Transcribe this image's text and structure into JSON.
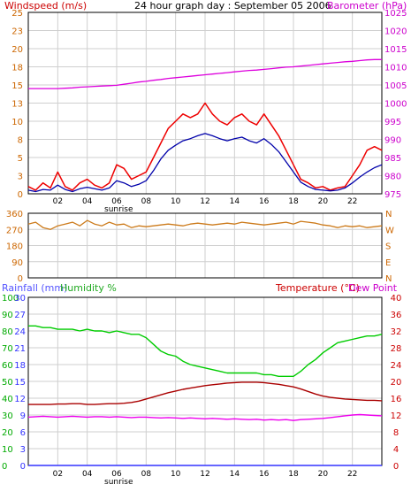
{
  "colors": {
    "wind_label": "#cc0000",
    "baro_label": "#cc00cc",
    "rain_label": "#5555ff",
    "hum_label": "#22aa22",
    "temp_label": "#cc0000",
    "dew_label": "#cc00cc",
    "wind_avg": "#0000aa",
    "wind_gust": "#ee0000",
    "baro": "#dd00dd",
    "direction": "#cc7a1a",
    "humidity": "#00cc00",
    "temperature": "#aa0000",
    "dew_point": "#ee00ee",
    "rainfall": "#3333ff",
    "grid": "#cfcfcf",
    "axis_text_left1": "#cc6600",
    "axis_text_right1": "#cc00cc",
    "axis_text_dir": "#cc6600",
    "axis_text_rain": "#3333ff",
    "axis_text_hum": "#00aa00",
    "axis_text_temp": "#cc0000"
  },
  "header": {
    "windspeed_label": "Windspeed (m/s)",
    "title": "24 hour graph day : September 05 2006",
    "barometer_label": "Barometer (hPa)"
  },
  "bottom_header": {
    "rainfall_label": "Rainfall (mm)",
    "humidity_label": "Humidity %",
    "temperature_label": "Temperature (°C)",
    "dewpoint_label": "Dew Point"
  },
  "sunrise_label": "sunrise",
  "x_ticks": [
    "02",
    "04",
    "06",
    "08",
    "10",
    "12",
    "14",
    "16",
    "18",
    "20",
    "22"
  ],
  "chart_data": [
    {
      "type": "line",
      "x_hours": [
        0,
        0.5,
        1,
        1.5,
        2,
        2.5,
        3,
        3.5,
        4,
        4.5,
        5,
        5.5,
        6,
        6.5,
        7,
        7.5,
        8,
        8.5,
        9,
        9.5,
        10,
        10.5,
        11,
        11.5,
        12,
        12.5,
        13,
        13.5,
        14,
        14.5,
        15,
        15.5,
        16,
        16.5,
        17,
        17.5,
        18,
        18.5,
        19,
        19.5,
        20,
        20.5,
        21,
        21.5,
        22,
        22.5,
        23,
        23.5,
        24
      ],
      "xticks": [
        "02",
        "04",
        "06",
        "08",
        "10",
        "12",
        "14",
        "16",
        "18",
        "20",
        "22"
      ],
      "left_axis": {
        "label": "Windspeed (m/s)",
        "ticks": [
          "0",
          "3",
          "5",
          "8",
          "10",
          "13",
          "15",
          "18",
          "20",
          "23",
          "25"
        ],
        "ylim": [
          0,
          25
        ]
      },
      "right_axis": {
        "label": "Barometer (hPa)",
        "ticks": [
          "975",
          "980",
          "985",
          "990",
          "995",
          "1000",
          "1005",
          "1010",
          "1015",
          "1020",
          "1025"
        ],
        "ylim": [
          975,
          1025
        ]
      },
      "series": [
        {
          "name": "Windspeed (m/s)",
          "role": "gust",
          "axis": "left",
          "values": [
            1,
            0.5,
            1.5,
            0.8,
            3,
            1,
            0.5,
            1.5,
            2,
            1.2,
            0.8,
            1.5,
            4,
            3.5,
            2,
            2.5,
            3,
            5,
            7,
            9,
            10,
            11,
            10.5,
            11,
            12.5,
            11,
            10,
            9.5,
            10.5,
            11,
            10,
            9.5,
            11,
            9.5,
            8,
            6,
            4,
            2,
            1.5,
            0.8,
            1,
            0.5,
            0.8,
            1,
            2.5,
            4,
            6,
            6.5,
            6
          ]
        },
        {
          "name": "Wind average",
          "role": "average",
          "axis": "left",
          "values": [
            0.5,
            0.3,
            0.6,
            0.5,
            1.2,
            0.6,
            0.3,
            0.7,
            0.9,
            0.7,
            0.5,
            0.8,
            1.8,
            1.5,
            1,
            1.3,
            1.8,
            3.2,
            4.8,
            6,
            6.7,
            7.3,
            7.6,
            8,
            8.3,
            8,
            7.6,
            7.3,
            7.6,
            7.8,
            7.3,
            7,
            7.6,
            6.8,
            5.8,
            4.4,
            3,
            1.6,
            1,
            0.6,
            0.5,
            0.4,
            0.5,
            0.8,
            1.5,
            2.3,
            3,
            3.6,
            4
          ]
        },
        {
          "name": "Barometer (hPa)",
          "role": "pressure",
          "axis": "right",
          "values": [
            1004,
            1004,
            1004,
            1004,
            1004,
            1004.1,
            1004.2,
            1004.4,
            1004.5,
            1004.6,
            1004.7,
            1004.8,
            1004.9,
            1005.2,
            1005.5,
            1005.8,
            1006,
            1006.3,
            1006.5,
            1006.8,
            1007,
            1007.2,
            1007.4,
            1007.6,
            1007.8,
            1008,
            1008.2,
            1008.4,
            1008.6,
            1008.8,
            1009,
            1009.1,
            1009.3,
            1009.5,
            1009.7,
            1009.9,
            1010,
            1010.2,
            1010.4,
            1010.6,
            1010.8,
            1011,
            1011.2,
            1011.4,
            1011.5,
            1011.7,
            1011.9,
            1012,
            1012
          ]
        }
      ]
    },
    {
      "type": "line",
      "x_hours": [
        0,
        0.5,
        1,
        1.5,
        2,
        2.5,
        3,
        3.5,
        4,
        4.5,
        5,
        5.5,
        6,
        6.5,
        7,
        7.5,
        8,
        8.5,
        9,
        9.5,
        10,
        10.5,
        11,
        11.5,
        12,
        12.5,
        13,
        13.5,
        14,
        14.5,
        15,
        15.5,
        16,
        16.5,
        17,
        17.5,
        18,
        18.5,
        19,
        19.5,
        20,
        20.5,
        21,
        21.5,
        22,
        22.5,
        23,
        23.5,
        24
      ],
      "xticks": [
        "02",
        "04",
        "06",
        "08",
        "10",
        "12",
        "14",
        "16",
        "18",
        "20",
        "22"
      ],
      "left_axis": {
        "ticks": [
          "0",
          "90",
          "180",
          "270",
          "360"
        ],
        "ylim": [
          0,
          360
        ]
      },
      "right_axis": {
        "ticks": [
          "N",
          "E",
          "S",
          "W",
          "N"
        ]
      },
      "series": [
        {
          "name": "Wind direction",
          "axis": "left",
          "values": [
            300,
            310,
            280,
            270,
            290,
            300,
            310,
            290,
            320,
            300,
            290,
            310,
            295,
            300,
            280,
            290,
            285,
            290,
            295,
            300,
            295,
            290,
            300,
            305,
            300,
            295,
            300,
            305,
            300,
            310,
            305,
            300,
            295,
            300,
            305,
            310,
            300,
            315,
            310,
            305,
            295,
            290,
            280,
            290,
            285,
            290,
            280,
            285,
            290
          ]
        }
      ]
    },
    {
      "type": "line",
      "x_hours": [
        0,
        0.5,
        1,
        1.5,
        2,
        2.5,
        3,
        3.5,
        4,
        4.5,
        5,
        5.5,
        6,
        6.5,
        7,
        7.5,
        8,
        8.5,
        9,
        9.5,
        10,
        10.5,
        11,
        11.5,
        12,
        12.5,
        13,
        13.5,
        14,
        14.5,
        15,
        15.5,
        16,
        16.5,
        17,
        17.5,
        18,
        18.5,
        19,
        19.5,
        20,
        20.5,
        21,
        21.5,
        22,
        22.5,
        23,
        23.5,
        24
      ],
      "xticks": [
        "02",
        "04",
        "06",
        "08",
        "10",
        "12",
        "14",
        "16",
        "18",
        "20",
        "22"
      ],
      "left_axis_rain": {
        "label": "Rainfall (mm)",
        "ticks": [
          "0",
          "3",
          "6",
          "9",
          "12",
          "15",
          "18",
          "21",
          "24",
          "27",
          "30"
        ],
        "ylim": [
          0,
          30
        ]
      },
      "left_axis_humidity": {
        "label": "Humidity %",
        "ticks": [
          "0",
          "10",
          "20",
          "30",
          "40",
          "50",
          "60",
          "70",
          "80",
          "90",
          "100"
        ],
        "ylim": [
          0,
          100
        ]
      },
      "right_axis": {
        "label": "Temperature (°C)",
        "ticks": [
          "0",
          "4",
          "8",
          "12",
          "16",
          "20",
          "24",
          "28",
          "32",
          "36",
          "40"
        ],
        "ylim": [
          0,
          40
        ]
      },
      "series": [
        {
          "name": "Humidity %",
          "axis": "humidity",
          "values": [
            83,
            83,
            82,
            82,
            81,
            81,
            81,
            80,
            81,
            80,
            80,
            79,
            80,
            79,
            78,
            78,
            76,
            72,
            68,
            66,
            65,
            62,
            60,
            59,
            58,
            57,
            56,
            55,
            55,
            55,
            55,
            55,
            54,
            54,
            53,
            53,
            53,
            56,
            60,
            63,
            67,
            70,
            73,
            74,
            75,
            76,
            77,
            77,
            78
          ]
        },
        {
          "name": "Temperature (°C)",
          "axis": "temp",
          "values": [
            14.5,
            14.5,
            14.5,
            14.5,
            14.6,
            14.6,
            14.7,
            14.7,
            14.5,
            14.5,
            14.6,
            14.7,
            14.7,
            14.8,
            15,
            15.3,
            15.8,
            16.3,
            16.8,
            17.3,
            17.7,
            18.1,
            18.4,
            18.7,
            19,
            19.2,
            19.4,
            19.6,
            19.7,
            19.8,
            19.8,
            19.8,
            19.7,
            19.5,
            19.3,
            19,
            18.7,
            18.2,
            17.6,
            17,
            16.5,
            16.2,
            16,
            15.8,
            15.7,
            15.6,
            15.5,
            15.5,
            15.4
          ]
        },
        {
          "name": "Dew Point",
          "axis": "temp",
          "values": [
            11.5,
            11.6,
            11.7,
            11.6,
            11.5,
            11.6,
            11.7,
            11.6,
            11.5,
            11.6,
            11.6,
            11.5,
            11.6,
            11.5,
            11.4,
            11.5,
            11.5,
            11.4,
            11.3,
            11.4,
            11.3,
            11.2,
            11.3,
            11.2,
            11.1,
            11.2,
            11.1,
            11,
            11.1,
            11,
            10.9,
            11,
            10.8,
            10.9,
            10.8,
            10.9,
            10.7,
            10.9,
            11,
            11.1,
            11.2,
            11.4,
            11.6,
            11.8,
            12,
            12.1,
            12,
            11.9,
            11.8
          ]
        },
        {
          "name": "Rainfall (mm)",
          "axis": "rain",
          "values": [
            0,
            0,
            0,
            0,
            0,
            0,
            0,
            0,
            0,
            0,
            0,
            0,
            0,
            0,
            0,
            0,
            0,
            0,
            0,
            0,
            0,
            0,
            0,
            0,
            0,
            0,
            0,
            0,
            0,
            0,
            0,
            0,
            0,
            0,
            0,
            0,
            0,
            0,
            0,
            0,
            0,
            0,
            0,
            0,
            0,
            0,
            0,
            0,
            0
          ]
        }
      ]
    }
  ]
}
